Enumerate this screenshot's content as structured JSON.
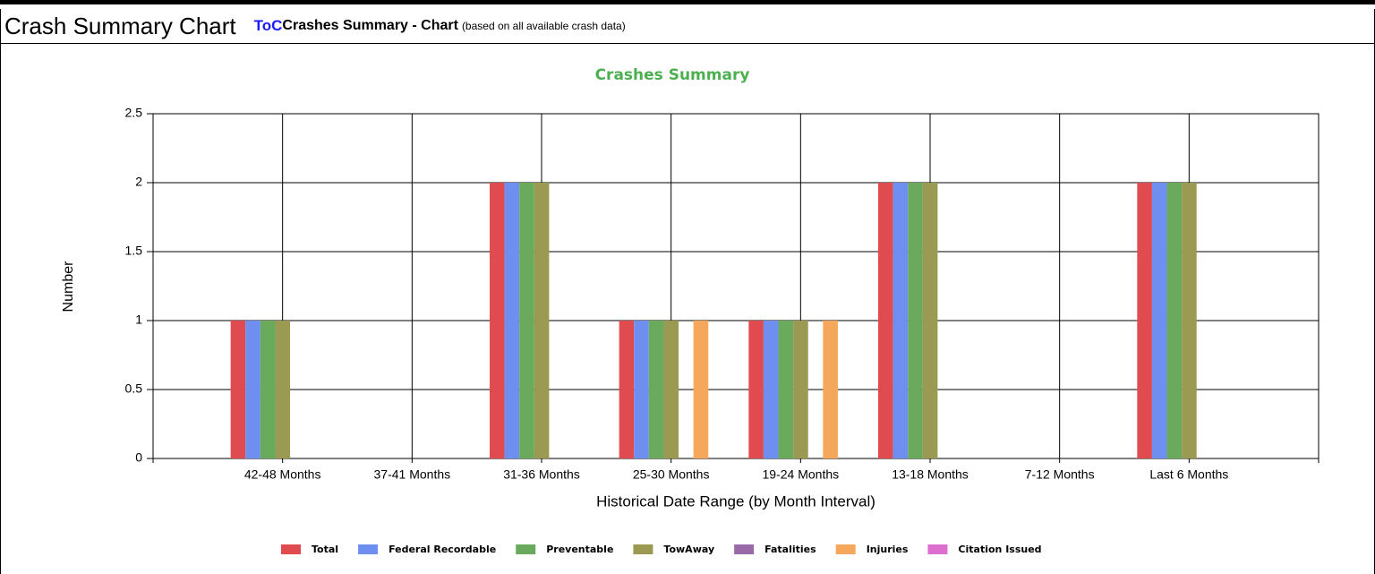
{
  "header": {
    "title": "Crash Summary Chart",
    "link": "ToC",
    "subtitle": "Crashes Summary - Chart",
    "note": "(based on all available crash data)"
  },
  "chart_data": {
    "type": "bar",
    "title": "Crashes Summary",
    "x_label": "Historical Date Range (by Month Interval)",
    "y_label": "Number",
    "categories": [
      "42-48 Months",
      "37-41 Months",
      "31-36 Months",
      "25-30 Months",
      "19-24 Months",
      "13-18 Months",
      "7-12 Months",
      "Last 6 Months"
    ],
    "series": [
      {
        "name": "Total",
        "color": "#e04b4f",
        "values": [
          1,
          0,
          2,
          1,
          1,
          2,
          0,
          2
        ]
      },
      {
        "name": "Federal Recordable",
        "color": "#6e8ff0",
        "values": [
          1,
          0,
          2,
          1,
          1,
          2,
          0,
          2
        ]
      },
      {
        "name": "Preventable",
        "color": "#6aaa5c",
        "values": [
          1,
          0,
          2,
          1,
          1,
          2,
          0,
          2
        ]
      },
      {
        "name": "TowAway",
        "color": "#9a9a52",
        "values": [
          1,
          0,
          2,
          1,
          1,
          2,
          0,
          2
        ]
      },
      {
        "name": "Fatalities",
        "color": "#9a6aa8",
        "values": [
          0,
          0,
          0,
          0,
          0,
          0,
          0,
          0
        ]
      },
      {
        "name": "Injuries",
        "color": "#f5a85c",
        "values": [
          0,
          0,
          0,
          1,
          1,
          0,
          0,
          0
        ]
      },
      {
        "name": "Citation Issued",
        "color": "#dd6fd0",
        "values": [
          0,
          0,
          0,
          0,
          0,
          0,
          0,
          0
        ]
      }
    ],
    "ylim": [
      0,
      2.5
    ],
    "yticks": [
      0,
      0.5,
      1,
      1.5,
      2,
      2.5
    ],
    "grid": true,
    "legend": "bottom"
  }
}
